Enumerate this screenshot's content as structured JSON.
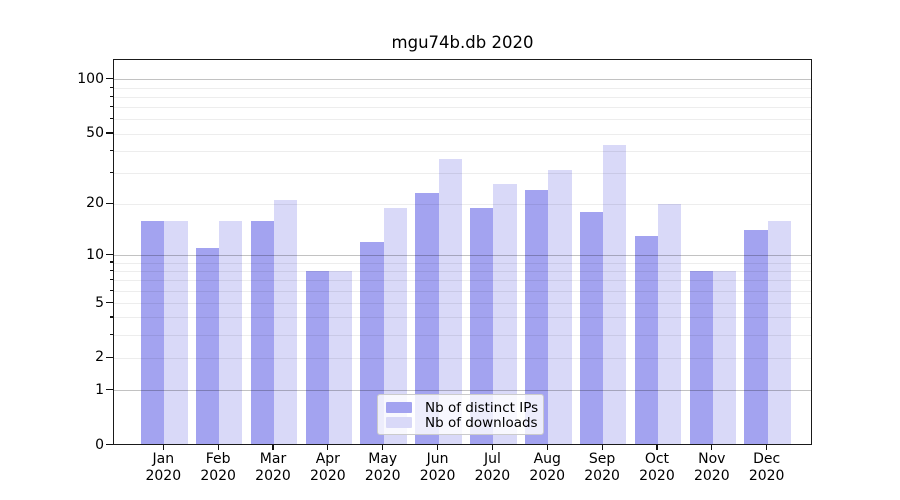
{
  "title": "mgu74b.db 2020",
  "chart_data": {
    "type": "bar",
    "title": "mgu74b.db 2020",
    "categories": [
      "Jan 2020",
      "Feb 2020",
      "Mar 2020",
      "Apr 2020",
      "May 2020",
      "Jun 2020",
      "Jul 2020",
      "Aug 2020",
      "Sep 2020",
      "Oct 2020",
      "Nov 2020",
      "Dec 2020"
    ],
    "series": [
      {
        "name": "Nb of distinct IPs",
        "color": "#a3a3f0",
        "values": [
          16,
          11,
          16,
          8,
          12,
          23,
          19,
          24,
          18,
          13,
          8,
          14
        ]
      },
      {
        "name": "Nb of downloads",
        "color": "#d9d9f8",
        "values": [
          16,
          16,
          21,
          8,
          19,
          36,
          26,
          31,
          43,
          20,
          8,
          16
        ]
      }
    ],
    "xlabel": "",
    "ylabel": "",
    "yscale": "log1p",
    "ylim": [
      0,
      128
    ],
    "yticks": [
      0,
      1,
      2,
      5,
      10,
      20,
      50,
      100
    ],
    "major_gridlines": [
      1,
      10,
      100
    ],
    "minor_gridlines": [
      2,
      3,
      4,
      5,
      6,
      7,
      8,
      9,
      20,
      30,
      40,
      50,
      60,
      70,
      80,
      90
    ],
    "minor_tick_marks": [
      3,
      4,
      6,
      7,
      8,
      9,
      30,
      40,
      60,
      70,
      80,
      90
    ],
    "grid": true,
    "legend_position": "lower center"
  }
}
